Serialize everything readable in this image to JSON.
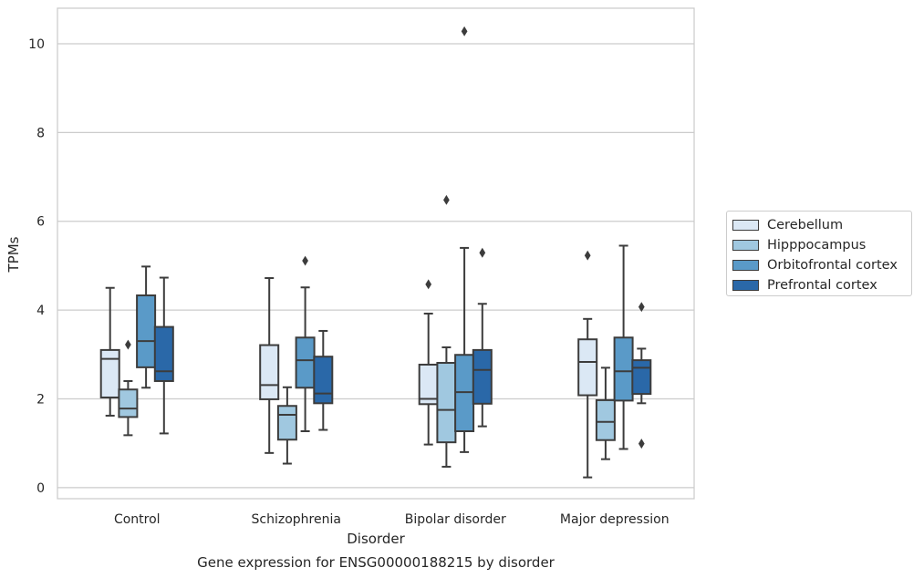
{
  "chart_data": {
    "type": "box",
    "title": "Gene expression for ENSG00000188215 by disorder",
    "xlabel": "Disorder",
    "ylabel": "TPMs",
    "categories": [
      "Control",
      "Schizophrenia",
      "Bipolar disorder",
      "Major depression"
    ],
    "ylim": [
      -0.25,
      10.8
    ],
    "yticks": [
      "0",
      "2",
      "4",
      "6",
      "8",
      "10"
    ],
    "grid": true,
    "legend_position": "right",
    "series": [
      {
        "name": "Cerebellum",
        "color": "#dbe8f5",
        "boxes": [
          {
            "whisker_low": 1.62,
            "q1": 2.03,
            "median": 2.9,
            "q3": 3.1,
            "whisker_high": 4.5,
            "outliers": []
          },
          {
            "whisker_low": 0.78,
            "q1": 1.99,
            "median": 2.31,
            "q3": 3.21,
            "whisker_high": 4.72,
            "outliers": []
          },
          {
            "whisker_low": 0.97,
            "q1": 1.88,
            "median": 2.0,
            "q3": 2.77,
            "whisker_high": 3.92,
            "outliers": [
              4.58
            ]
          },
          {
            "whisker_low": 0.23,
            "q1": 2.08,
            "median": 2.83,
            "q3": 3.34,
            "whisker_high": 3.8,
            "outliers": [
              5.23
            ]
          }
        ]
      },
      {
        "name": "Hipppocampus",
        "color": "#a0c8e0",
        "boxes": [
          {
            "whisker_low": 1.18,
            "q1": 1.59,
            "median": 1.78,
            "q3": 2.21,
            "whisker_high": 2.4,
            "outliers": [
              3.22
            ]
          },
          {
            "whisker_low": 0.54,
            "q1": 1.08,
            "median": 1.64,
            "q3": 1.84,
            "whisker_high": 2.26,
            "outliers": []
          },
          {
            "whisker_low": 0.47,
            "q1": 1.02,
            "median": 1.75,
            "q3": 2.81,
            "whisker_high": 3.16,
            "outliers": [
              6.48
            ]
          },
          {
            "whisker_low": 0.64,
            "q1": 1.07,
            "median": 1.48,
            "q3": 1.97,
            "whisker_high": 2.7,
            "outliers": []
          }
        ]
      },
      {
        "name": "Orbitofrontal cortex",
        "color": "#5a9ac8",
        "boxes": [
          {
            "whisker_low": 2.25,
            "q1": 2.71,
            "median": 3.3,
            "q3": 4.33,
            "whisker_high": 4.98,
            "outliers": []
          },
          {
            "whisker_low": 1.27,
            "q1": 2.25,
            "median": 2.87,
            "q3": 3.38,
            "whisker_high": 4.51,
            "outliers": [
              5.11
            ]
          },
          {
            "whisker_low": 0.8,
            "q1": 1.27,
            "median": 2.15,
            "q3": 2.99,
            "whisker_high": 5.4,
            "outliers": [
              10.28
            ]
          },
          {
            "whisker_low": 0.87,
            "q1": 1.96,
            "median": 2.62,
            "q3": 3.38,
            "whisker_high": 5.45,
            "outliers": []
          }
        ]
      },
      {
        "name": "Prefrontal cortex",
        "color": "#2a68a8",
        "boxes": [
          {
            "whisker_low": 1.22,
            "q1": 2.4,
            "median": 2.62,
            "q3": 3.62,
            "whisker_high": 4.73,
            "outliers": []
          },
          {
            "whisker_low": 1.3,
            "q1": 1.9,
            "median": 2.12,
            "q3": 2.95,
            "whisker_high": 3.53,
            "outliers": []
          },
          {
            "whisker_low": 1.38,
            "q1": 1.89,
            "median": 2.65,
            "q3": 3.1,
            "whisker_high": 4.14,
            "outliers": [
              5.29
            ]
          },
          {
            "whisker_low": 1.9,
            "q1": 2.11,
            "median": 2.7,
            "q3": 2.87,
            "whisker_high": 3.13,
            "outliers": [
              4.07,
              0.99
            ]
          }
        ]
      }
    ]
  }
}
